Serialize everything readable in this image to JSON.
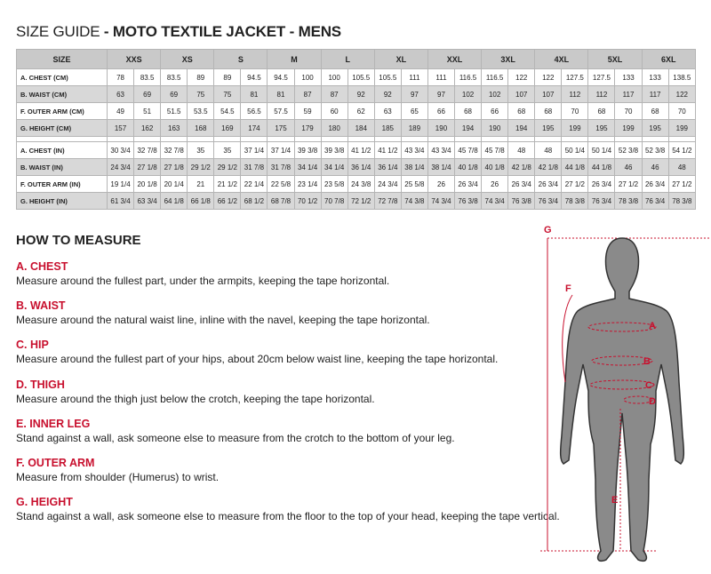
{
  "title": {
    "prefix": "SIZE GUIDE",
    "main": " - MOTO TEXTILE JACKET - MENS"
  },
  "table": {
    "size_label": "SIZE",
    "sizes": [
      "XXS",
      "XS",
      "S",
      "M",
      "L",
      "XL",
      "XXL",
      "3XL",
      "4XL",
      "5XL",
      "6XL"
    ],
    "cm_rows": [
      {
        "label": "A. CHEST (CM)",
        "values": [
          "78",
          "83.5",
          "83.5",
          "89",
          "89",
          "94.5",
          "94.5",
          "100",
          "100",
          "105.5",
          "105.5",
          "111",
          "111",
          "116.5",
          "116.5",
          "122",
          "122",
          "127.5",
          "127.5",
          "133",
          "133",
          "138.5"
        ]
      },
      {
        "label": "B. WAIST (CM)",
        "values": [
          "63",
          "69",
          "69",
          "75",
          "75",
          "81",
          "81",
          "87",
          "87",
          "92",
          "92",
          "97",
          "97",
          "102",
          "102",
          "107",
          "107",
          "112",
          "112",
          "117",
          "117",
          "122"
        ]
      },
      {
        "label": "F. OUTER ARM (CM)",
        "values": [
          "49",
          "51",
          "51.5",
          "53.5",
          "54.5",
          "56.5",
          "57.5",
          "59",
          "60",
          "62",
          "63",
          "65",
          "66",
          "68",
          "66",
          "68",
          "68",
          "70",
          "68",
          "70",
          "68",
          "70"
        ]
      },
      {
        "label": "G. HEIGHT (CM)",
        "values": [
          "157",
          "162",
          "163",
          "168",
          "169",
          "174",
          "175",
          "179",
          "180",
          "184",
          "185",
          "189",
          "190",
          "194",
          "190",
          "194",
          "195",
          "199",
          "195",
          "199",
          "195",
          "199"
        ]
      }
    ],
    "in_rows": [
      {
        "label": "A. CHEST (IN)",
        "values": [
          "30 3/4",
          "32 7/8",
          "32 7/8",
          "35",
          "35",
          "37 1/4",
          "37 1/4",
          "39 3/8",
          "39 3/8",
          "41 1/2",
          "41 1/2",
          "43 3/4",
          "43 3/4",
          "45 7/8",
          "45 7/8",
          "48",
          "48",
          "50 1/4",
          "50 1/4",
          "52 3/8",
          "52 3/8",
          "54 1/2"
        ]
      },
      {
        "label": "B. WAIST (IN)",
        "values": [
          "24 3/4",
          "27 1/8",
          "27 1/8",
          "29 1/2",
          "29 1/2",
          "31 7/8",
          "31 7/8",
          "34 1/4",
          "34 1/4",
          "36 1/4",
          "36 1/4",
          "38 1/4",
          "38 1/4",
          "40 1/8",
          "40 1/8",
          "42 1/8",
          "42 1/8",
          "44 1/8",
          "44 1/8",
          "46",
          "46",
          "48"
        ]
      },
      {
        "label": "F. OUTER ARM (IN)",
        "values": [
          "19 1/4",
          "20 1/8",
          "20 1/4",
          "21",
          "21 1/2",
          "22 1/4",
          "22 5/8",
          "23 1/4",
          "23 5/8",
          "24 3/8",
          "24 3/4",
          "25 5/8",
          "26",
          "26 3/4",
          "26",
          "26 3/4",
          "26 3/4",
          "27 1/2",
          "26 3/4",
          "27 1/2",
          "26 3/4",
          "27 1/2"
        ]
      },
      {
        "label": "G. HEIGHT (IN)",
        "values": [
          "61 3/4",
          "63 3/4",
          "64 1/8",
          "66 1/8",
          "66 1/2",
          "68 1/2",
          "68 7/8",
          "70 1/2",
          "70 7/8",
          "72 1/2",
          "72 7/8",
          "74 3/8",
          "74 3/4",
          "76 3/8",
          "74 3/4",
          "76 3/8",
          "76 3/4",
          "78 3/8",
          "76 3/4",
          "78 3/8",
          "76 3/4",
          "78 3/8"
        ]
      }
    ]
  },
  "how_to": {
    "heading": "HOW TO MEASURE",
    "items": [
      {
        "title": "A. CHEST",
        "text": "Measure around the fullest part, under the armpits, keeping the tape horizontal."
      },
      {
        "title": "B. WAIST",
        "text": "Measure around the natural waist line, inline with the navel, keeping the tape horizontal."
      },
      {
        "title": "C. HIP",
        "text": "Measure around the fullest part of your hips, about 20cm below waist line, keeping the tape horizontal."
      },
      {
        "title": "D. THIGH",
        "text": "Measure around the thigh just below the crotch, keeping the tape horizontal."
      },
      {
        "title": "E. INNER LEG",
        "text": "Stand against a wall, ask someone else to measure from the crotch to the bottom of your leg."
      },
      {
        "title": "F. OUTER ARM",
        "text": "Measure from shoulder (Humerus) to wrist."
      },
      {
        "title": "G. HEIGHT",
        "text": "Stand against a wall, ask someone else to measure from the floor to the top of your head, keeping the tape vertical."
      }
    ]
  },
  "figure": {
    "labels": [
      "A",
      "B",
      "C",
      "D",
      "E",
      "F",
      "G"
    ]
  },
  "colors": {
    "accent": "#c8102e",
    "header_bg": "#c9c9c9",
    "alt_row": "#d8d8d8"
  }
}
